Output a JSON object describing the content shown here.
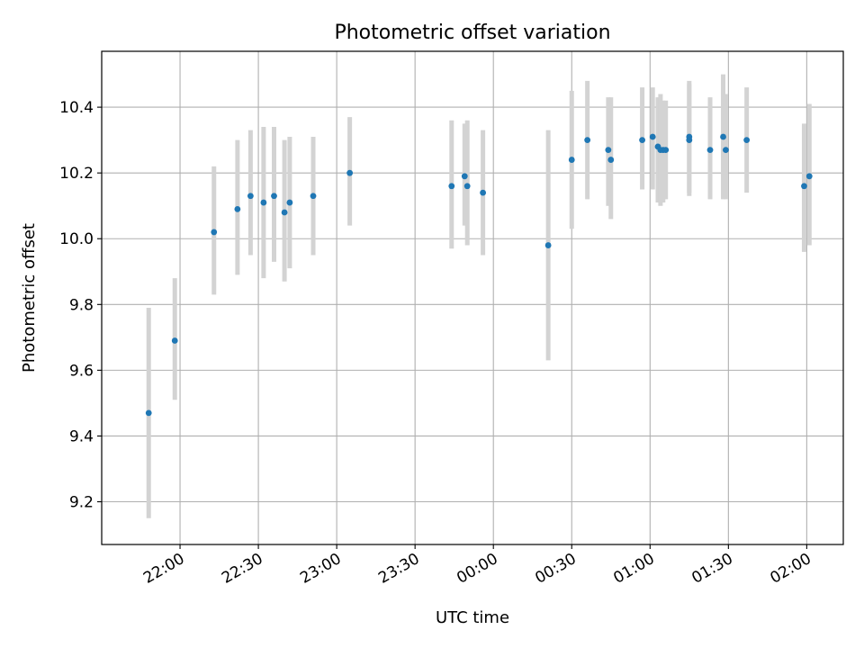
{
  "chart_data": {
    "type": "scatter",
    "title": "Photometric offset variation",
    "xlabel": "UTC time",
    "ylabel": "Photometric offset",
    "x_axis_type": "time",
    "xlim": [
      "21:30",
      "02:14"
    ],
    "ylim": [
      9.07,
      10.57
    ],
    "grid": true,
    "legend": "none",
    "xticks": [
      "22:00",
      "22:30",
      "23:00",
      "23:30",
      "00:00",
      "00:30",
      "01:00",
      "01:30",
      "02:00"
    ],
    "yticks": [
      "9.2",
      "9.4",
      "9.6",
      "9.8",
      "10.0",
      "10.2",
      "10.4"
    ],
    "colors": {
      "points": "#1f77b4",
      "errorbars": "#d3d3d3",
      "grid": "#b0b0b0",
      "axes": "#000000"
    },
    "series": [
      {
        "x": [
          "21:48",
          "21:58",
          "22:13",
          "22:22",
          "22:27",
          "22:32",
          "22:36",
          "22:40",
          "22:42",
          "22:51",
          "23:05",
          "23:44",
          "23:49",
          "23:50",
          "23:56",
          "00:21",
          "00:30",
          "00:36",
          "00:44",
          "00:45",
          "00:57",
          "01:01",
          "01:03",
          "01:04",
          "01:05",
          "01:06",
          "01:15",
          "01:15",
          "01:23",
          "01:28",
          "01:29",
          "01:37",
          "01:59",
          "02:01"
        ],
        "y": [
          9.47,
          9.69,
          10.02,
          10.09,
          10.13,
          10.11,
          10.13,
          10.08,
          10.11,
          10.13,
          10.2,
          10.16,
          10.19,
          10.16,
          10.14,
          9.98,
          10.24,
          10.3,
          10.27,
          10.24,
          10.3,
          10.31,
          10.28,
          10.27,
          10.27,
          10.27,
          10.31,
          10.3,
          10.27,
          10.31,
          10.27,
          10.3,
          10.16,
          10.19
        ],
        "error_low": [
          9.15,
          9.51,
          9.83,
          9.89,
          9.95,
          9.88,
          9.93,
          9.87,
          9.91,
          9.95,
          10.04,
          9.97,
          10.04,
          9.98,
          9.95,
          9.63,
          10.03,
          10.12,
          10.1,
          10.06,
          10.15,
          10.15,
          10.11,
          10.1,
          10.11,
          10.12,
          10.13,
          10.14,
          10.12,
          10.12,
          10.12,
          10.14,
          9.96,
          9.98
        ],
        "error_high": [
          9.79,
          9.88,
          10.22,
          10.3,
          10.33,
          10.34,
          10.34,
          10.3,
          10.31,
          10.31,
          10.37,
          10.36,
          10.35,
          10.36,
          10.33,
          10.33,
          10.45,
          10.48,
          10.43,
          10.43,
          10.46,
          10.46,
          10.43,
          10.44,
          10.42,
          10.42,
          10.48,
          10.47,
          10.43,
          10.5,
          10.44,
          10.46,
          10.35,
          10.41
        ]
      }
    ]
  }
}
